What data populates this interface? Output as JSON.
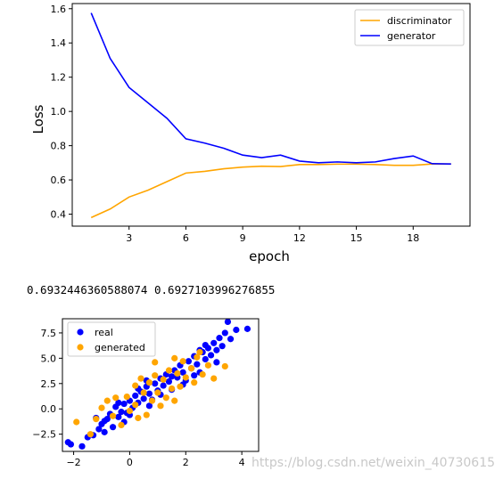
{
  "printout": {
    "value_a": "0.6932446360588074",
    "value_b": "0.6927103996276855"
  },
  "watermark": "https://blog.csdn.net/weixin_40730615",
  "chart_data": [
    {
      "type": "line",
      "xlabel": "epoch",
      "ylabel": "Loss",
      "xlim": [
        0,
        21
      ],
      "ylim": [
        0.33,
        1.63
      ],
      "xticks": [
        3,
        6,
        9,
        12,
        15,
        18
      ],
      "yticks": [
        0.4,
        0.6,
        0.8,
        1.0,
        1.2,
        1.4,
        1.6
      ],
      "grid": false,
      "legend": "top-right",
      "x": [
        1,
        2,
        3,
        4,
        5,
        6,
        7,
        8,
        9,
        10,
        11,
        12,
        13,
        14,
        15,
        16,
        17,
        18,
        19,
        20
      ],
      "series": [
        {
          "name": "discriminator",
          "color": "#ffa500",
          "values": [
            0.38,
            0.43,
            0.5,
            0.54,
            0.59,
            0.64,
            0.65,
            0.665,
            0.675,
            0.68,
            0.678,
            0.69,
            0.69,
            0.692,
            0.692,
            0.69,
            0.685,
            0.685,
            0.693,
            0.693
          ]
        },
        {
          "name": "generator",
          "color": "#0000ff",
          "values": [
            1.575,
            1.31,
            1.14,
            1.05,
            0.96,
            0.84,
            0.815,
            0.785,
            0.745,
            0.73,
            0.745,
            0.71,
            0.7,
            0.705,
            0.7,
            0.705,
            0.725,
            0.74,
            0.695,
            0.693
          ]
        }
      ]
    },
    {
      "type": "scatter",
      "xlim": [
        -2.4,
        4.6
      ],
      "ylim": [
        -4.2,
        8.9
      ],
      "xticks": [
        -2,
        0,
        2,
        4
      ],
      "yticks": [
        -2.5,
        0.0,
        2.5,
        5.0,
        7.5
      ],
      "grid": false,
      "legend": "top-left",
      "series": [
        {
          "name": "real",
          "color": "#0000ff",
          "points": [
            [
              -2.2,
              -3.3
            ],
            [
              -2.1,
              -3.5
            ],
            [
              -1.7,
              -3.7
            ],
            [
              -1.5,
              -2.8
            ],
            [
              -1.3,
              -2.6
            ],
            [
              -1.1,
              -2.0
            ],
            [
              -1.0,
              -1.5
            ],
            [
              -0.9,
              -2.3
            ],
            [
              -0.8,
              -1.0
            ],
            [
              -0.7,
              -0.5
            ],
            [
              -0.6,
              -1.8
            ],
            [
              -0.5,
              0.2
            ],
            [
              -0.4,
              -0.8
            ],
            [
              -0.3,
              -0.3
            ],
            [
              -0.2,
              0.5
            ],
            [
              -0.1,
              -0.4
            ],
            [
              0.0,
              0.8
            ],
            [
              0.1,
              0.1
            ],
            [
              0.2,
              1.3
            ],
            [
              0.3,
              0.6
            ],
            [
              0.4,
              1.7
            ],
            [
              0.5,
              1.0
            ],
            [
              0.6,
              2.2
            ],
            [
              0.7,
              1.5
            ],
            [
              0.8,
              0.9
            ],
            [
              0.9,
              2.5
            ],
            [
              1.0,
              1.8
            ],
            [
              1.1,
              3.0
            ],
            [
              1.2,
              2.3
            ],
            [
              1.3,
              3.4
            ],
            [
              1.4,
              2.7
            ],
            [
              1.5,
              1.9
            ],
            [
              1.6,
              3.8
            ],
            [
              1.7,
              3.1
            ],
            [
              1.8,
              4.3
            ],
            [
              1.9,
              3.6
            ],
            [
              2.0,
              2.8
            ],
            [
              2.1,
              4.7
            ],
            [
              2.2,
              4.0
            ],
            [
              2.3,
              5.2
            ],
            [
              2.4,
              4.4
            ],
            [
              2.5,
              3.6
            ],
            [
              2.6,
              5.6
            ],
            [
              2.7,
              4.9
            ],
            [
              2.8,
              6.0
            ],
            [
              2.9,
              5.3
            ],
            [
              3.0,
              6.5
            ],
            [
              3.1,
              5.8
            ],
            [
              3.2,
              7.0
            ],
            [
              3.3,
              6.2
            ],
            [
              3.4,
              7.5
            ],
            [
              3.5,
              8.6
            ],
            [
              3.6,
              6.9
            ],
            [
              3.8,
              7.8
            ],
            [
              4.2,
              7.9
            ],
            [
              -0.9,
              -1.2
            ],
            [
              -0.4,
              0.6
            ],
            [
              0.0,
              -0.6
            ],
            [
              0.3,
              2.0
            ],
            [
              0.7,
              0.3
            ],
            [
              1.1,
              1.4
            ],
            [
              1.5,
              3.2
            ],
            [
              1.9,
              2.4
            ],
            [
              2.3,
              3.3
            ],
            [
              2.7,
              6.3
            ],
            [
              3.1,
              4.6
            ],
            [
              -1.2,
              -0.9
            ],
            [
              -0.2,
              -1.3
            ],
            [
              0.6,
              2.8
            ],
            [
              2.5,
              5.8
            ]
          ]
        },
        {
          "name": "generated",
          "color": "#ffa500",
          "points": [
            [
              -1.9,
              -1.3
            ],
            [
              -1.4,
              -2.5
            ],
            [
              -1.2,
              -1.0
            ],
            [
              -1.0,
              0.1
            ],
            [
              -0.8,
              0.8
            ],
            [
              -0.6,
              -0.7
            ],
            [
              -0.3,
              -1.6
            ],
            [
              -0.1,
              1.2
            ],
            [
              0.0,
              -0.2
            ],
            [
              0.2,
              2.3
            ],
            [
              0.2,
              0.4
            ],
            [
              0.4,
              3.0
            ],
            [
              0.5,
              1.6
            ],
            [
              0.6,
              -0.6
            ],
            [
              0.7,
              2.6
            ],
            [
              0.8,
              0.8
            ],
            [
              0.9,
              3.3
            ],
            [
              1.0,
              1.6
            ],
            [
              1.1,
              0.3
            ],
            [
              1.2,
              2.9
            ],
            [
              1.3,
              1.1
            ],
            [
              1.4,
              3.8
            ],
            [
              1.5,
              2.0
            ],
            [
              1.6,
              0.8
            ],
            [
              1.7,
              3.5
            ],
            [
              1.8,
              2.2
            ],
            [
              1.9,
              4.7
            ],
            [
              2.0,
              3.1
            ],
            [
              2.2,
              4.0
            ],
            [
              2.3,
              2.6
            ],
            [
              2.4,
              5.1
            ],
            [
              2.6,
              3.4
            ],
            [
              2.8,
              4.3
            ],
            [
              3.0,
              3.0
            ],
            [
              3.4,
              4.2
            ],
            [
              -0.5,
              1.1
            ],
            [
              0.3,
              -0.9
            ],
            [
              0.9,
              4.6
            ],
            [
              1.6,
              5.0
            ],
            [
              2.5,
              5.6
            ]
          ]
        }
      ]
    }
  ]
}
